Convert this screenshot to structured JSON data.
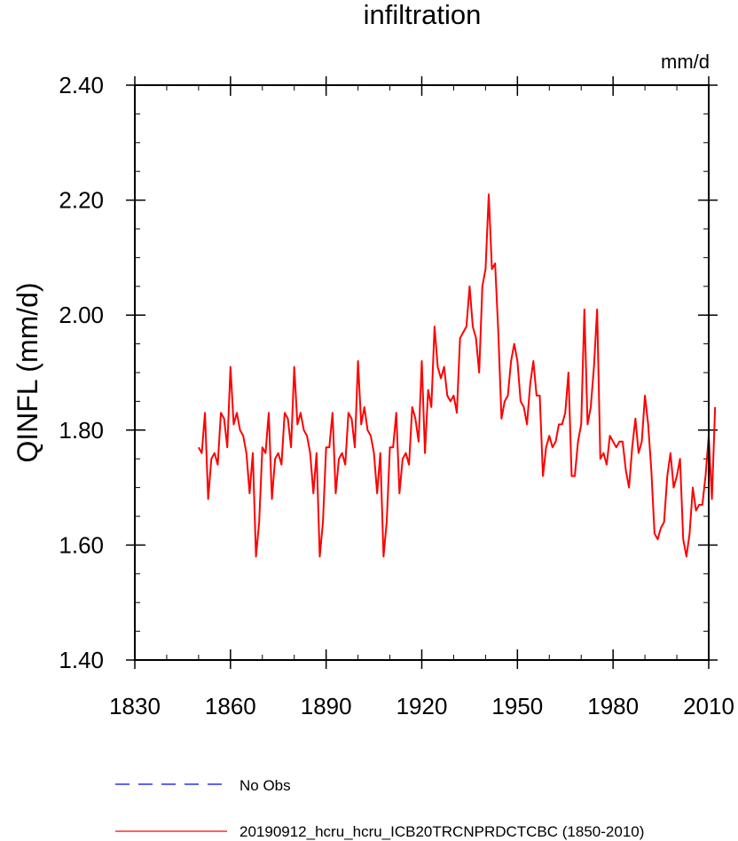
{
  "chart_data": {
    "type": "line",
    "title": "infiltration",
    "units_label": "mm/d",
    "ylabel": "QINFL  (mm/d)",
    "xlabel": "",
    "xlim": [
      1830,
      2010
    ],
    "ylim": [
      1.4,
      2.4
    ],
    "x_ticks": [
      1830,
      1860,
      1890,
      1920,
      1950,
      1980,
      2010
    ],
    "y_ticks": [
      1.4,
      1.6,
      1.8,
      2.0,
      2.2,
      2.4
    ],
    "y_tick_labels": [
      "1.40",
      "1.60",
      "1.80",
      "2.00",
      "2.20",
      "2.40"
    ],
    "grid": false,
    "legend_position": "bottom-left",
    "legend": [
      {
        "name": "No Obs",
        "color": "#0000ff",
        "style": "dashed"
      },
      {
        "name": "20190912_hcru_hcru_ICB20TRCNPRDCTCBC (1850-2010)",
        "color": "#ff0000",
        "style": "solid"
      }
    ],
    "series": [
      {
        "name": "20190912_hcru_hcru_ICB20TRCNPRDCTCBC (1850-2010)",
        "color": "#ff0000",
        "x_start": 1850,
        "x_step": 1,
        "values": [
          1.77,
          1.76,
          1.83,
          1.68,
          1.75,
          1.76,
          1.74,
          1.83,
          1.82,
          1.77,
          1.91,
          1.81,
          1.83,
          1.8,
          1.79,
          1.76,
          1.69,
          1.76,
          1.58,
          1.64,
          1.77,
          1.76,
          1.83,
          1.68,
          1.75,
          1.76,
          1.74,
          1.83,
          1.82,
          1.77,
          1.91,
          1.81,
          1.83,
          1.8,
          1.79,
          1.76,
          1.69,
          1.76,
          1.58,
          1.64,
          1.77,
          1.77,
          1.83,
          1.69,
          1.75,
          1.76,
          1.74,
          1.83,
          1.82,
          1.77,
          1.92,
          1.81,
          1.84,
          1.8,
          1.79,
          1.76,
          1.69,
          1.76,
          1.58,
          1.64,
          1.77,
          1.77,
          1.83,
          1.69,
          1.75,
          1.76,
          1.74,
          1.84,
          1.82,
          1.78,
          1.92,
          1.76,
          1.87,
          1.84,
          1.98,
          1.91,
          1.89,
          1.91,
          1.86,
          1.85,
          1.86,
          1.83,
          1.96,
          1.97,
          1.98,
          2.05,
          1.98,
          1.96,
          1.9,
          2.05,
          2.08,
          2.21,
          2.08,
          2.09,
          1.97,
          1.82,
          1.85,
          1.86,
          1.92,
          1.95,
          1.92,
          1.85,
          1.84,
          1.81,
          1.88,
          1.92,
          1.86,
          1.86,
          1.72,
          1.77,
          1.79,
          1.77,
          1.78,
          1.81,
          1.81,
          1.83,
          1.9,
          1.72,
          1.72,
          1.78,
          1.81,
          2.01,
          1.81,
          1.84,
          1.91,
          2.01,
          1.75,
          1.76,
          1.74,
          1.79,
          1.78,
          1.77,
          1.78,
          1.78,
          1.73,
          1.7,
          1.77,
          1.82,
          1.76,
          1.78,
          1.86,
          1.81,
          1.73,
          1.62,
          1.61,
          1.63,
          1.64,
          1.72,
          1.76,
          1.7,
          1.72,
          1.75,
          1.61,
          1.58,
          1.62,
          1.7,
          1.66,
          1.67,
          1.67,
          1.72,
          1.79,
          1.68,
          1.84
        ]
      }
    ]
  }
}
